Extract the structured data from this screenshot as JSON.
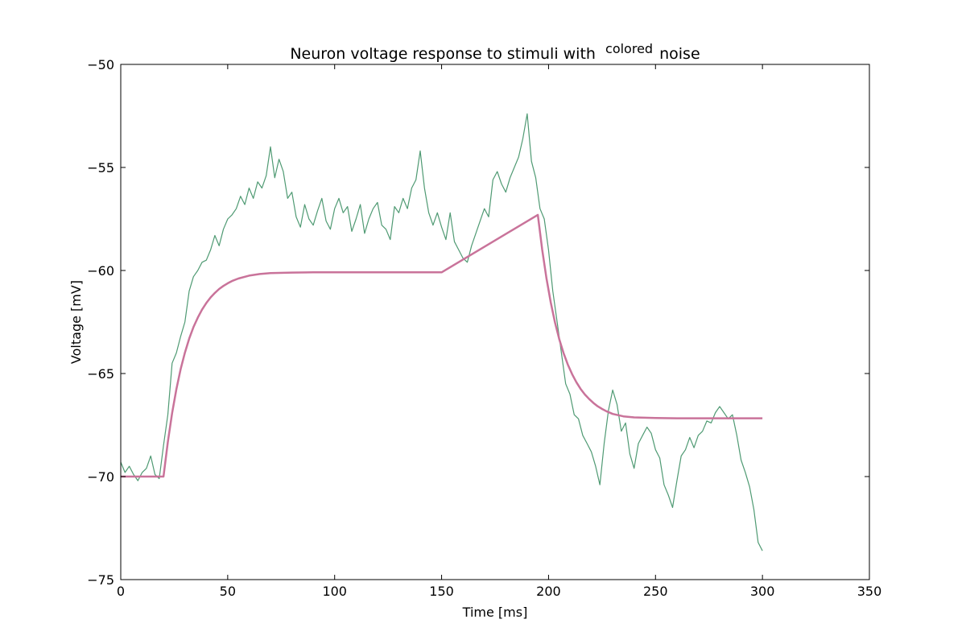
{
  "chart_data": {
    "type": "line",
    "title": {
      "prefix": "Neuron voltage response to stimuli with",
      "superscript": "colored",
      "suffix": "noise"
    },
    "xlabel": "Time [ms]",
    "ylabel": "Voltage [mV]",
    "xlim": [
      0,
      350
    ],
    "ylim": [
      -75,
      -50
    ],
    "xticks": [
      0,
      50,
      100,
      150,
      200,
      250,
      300,
      350
    ],
    "yticks": [
      -75,
      -70,
      -65,
      -60,
      -55,
      -50
    ],
    "grid": false,
    "legend": "none",
    "series": [
      {
        "color": "#4f9a73",
        "linewidth": 1.2,
        "x": [
          0,
          2,
          4,
          6,
          8,
          10,
          12,
          14,
          16,
          18,
          20,
          22,
          24,
          26,
          28,
          30,
          32,
          34,
          36,
          38,
          40,
          42,
          44,
          46,
          48,
          50,
          52,
          54,
          56,
          58,
          60,
          62,
          64,
          66,
          68,
          70,
          72,
          74,
          76,
          78,
          80,
          82,
          84,
          86,
          88,
          90,
          92,
          94,
          96,
          98,
          100,
          102,
          104,
          106,
          108,
          110,
          112,
          114,
          116,
          118,
          120,
          122,
          124,
          126,
          128,
          130,
          132,
          134,
          136,
          138,
          140,
          142,
          144,
          146,
          148,
          150,
          152,
          154,
          156,
          158,
          160,
          162,
          164,
          166,
          168,
          170,
          172,
          174,
          176,
          178,
          180,
          182,
          184,
          186,
          188,
          190,
          192,
          194,
          196,
          198,
          200,
          202,
          204,
          206,
          208,
          210,
          212,
          214,
          216,
          218,
          220,
          222,
          224,
          226,
          228,
          230,
          232,
          234,
          236,
          238,
          240,
          242,
          244,
          246,
          248,
          250,
          252,
          254,
          256,
          258,
          260,
          262,
          264,
          266,
          268,
          270,
          272,
          274,
          276,
          278,
          280,
          282,
          284,
          286,
          288,
          290,
          292,
          294,
          296,
          298,
          300
        ],
        "y": [
          -69.3,
          -69.8,
          -69.5,
          -69.9,
          -70.2,
          -69.8,
          -69.6,
          -69.0,
          -69.9,
          -70.1,
          -68.5,
          -67.0,
          -64.5,
          -64.0,
          -63.2,
          -62.5,
          -61.0,
          -60.3,
          -60.0,
          -59.6,
          -59.5,
          -59.0,
          -58.3,
          -58.8,
          -58.0,
          -57.5,
          -57.3,
          -57.0,
          -56.4,
          -56.8,
          -56.0,
          -56.5,
          -55.7,
          -56.0,
          -55.4,
          -54.0,
          -55.5,
          -54.6,
          -55.2,
          -56.5,
          -56.2,
          -57.4,
          -57.9,
          -56.8,
          -57.5,
          -57.8,
          -57.1,
          -56.5,
          -57.6,
          -58.0,
          -57.0,
          -56.5,
          -57.2,
          -56.9,
          -58.1,
          -57.5,
          -56.8,
          -58.2,
          -57.5,
          -57.0,
          -56.7,
          -57.8,
          -58.0,
          -58.5,
          -56.9,
          -57.2,
          -56.5,
          -57.0,
          -56.0,
          -55.6,
          -54.2,
          -56.0,
          -57.2,
          -57.8,
          -57.2,
          -57.9,
          -58.5,
          -57.2,
          -58.6,
          -59.0,
          -59.4,
          -59.6,
          -58.8,
          -58.2,
          -57.6,
          -57.0,
          -57.4,
          -55.6,
          -55.2,
          -55.8,
          -56.2,
          -55.5,
          -55.0,
          -54.5,
          -53.6,
          -52.4,
          -54.7,
          -55.5,
          -57.0,
          -57.5,
          -59.0,
          -61.0,
          -62.5,
          -64.0,
          -65.5,
          -66.0,
          -67.0,
          -67.2,
          -68.0,
          -68.4,
          -68.8,
          -69.5,
          -70.4,
          -68.4,
          -66.8,
          -65.8,
          -66.5,
          -67.8,
          -67.4,
          -68.9,
          -69.6,
          -68.4,
          -68.0,
          -67.6,
          -67.9,
          -68.7,
          -69.1,
          -70.4,
          -70.9,
          -71.5,
          -70.2,
          -69.0,
          -68.7,
          -68.1,
          -68.6,
          -68.0,
          -67.8,
          -67.3,
          -67.4,
          -66.9,
          -66.6,
          -66.9,
          -67.2,
          -67.0,
          -68.0,
          -69.2,
          -69.8,
          -70.5,
          -71.6,
          -73.2,
          -73.6
        ]
      },
      {
        "color": "#c9739a",
        "linewidth": 2.5,
        "x": [
          0,
          10,
          20,
          22,
          24,
          26,
          28,
          30,
          32,
          34,
          36,
          38,
          40,
          42,
          44,
          46,
          48,
          50,
          52,
          55,
          60,
          65,
          70,
          80,
          90,
          100,
          150,
          195,
          197,
          199,
          201,
          203,
          205,
          207,
          209,
          211,
          213,
          215,
          217,
          219,
          221,
          223,
          225,
          227,
          230,
          235,
          240,
          250,
          260,
          270,
          280,
          290,
          300
        ],
        "y": [
          -70,
          -70,
          -70,
          -68.32,
          -66.92,
          -65.76,
          -64.79,
          -63.99,
          -63.31,
          -62.75,
          -62.29,
          -61.9,
          -61.58,
          -61.31,
          -61.09,
          -60.9,
          -60.75,
          -60.62,
          -60.51,
          -60.39,
          -60.25,
          -60.17,
          -60.13,
          -60.1,
          -60.09,
          -60.09,
          -60.09,
          -57.3,
          -58.98,
          -60.37,
          -61.54,
          -62.52,
          -63.33,
          -64.0,
          -64.56,
          -65.03,
          -65.42,
          -65.75,
          -66.02,
          -66.24,
          -66.43,
          -66.59,
          -66.72,
          -66.83,
          -66.96,
          -67.08,
          -67.13,
          -67.16,
          -67.17,
          -67.17,
          -67.17,
          -67.17,
          -67.17
        ]
      }
    ]
  }
}
